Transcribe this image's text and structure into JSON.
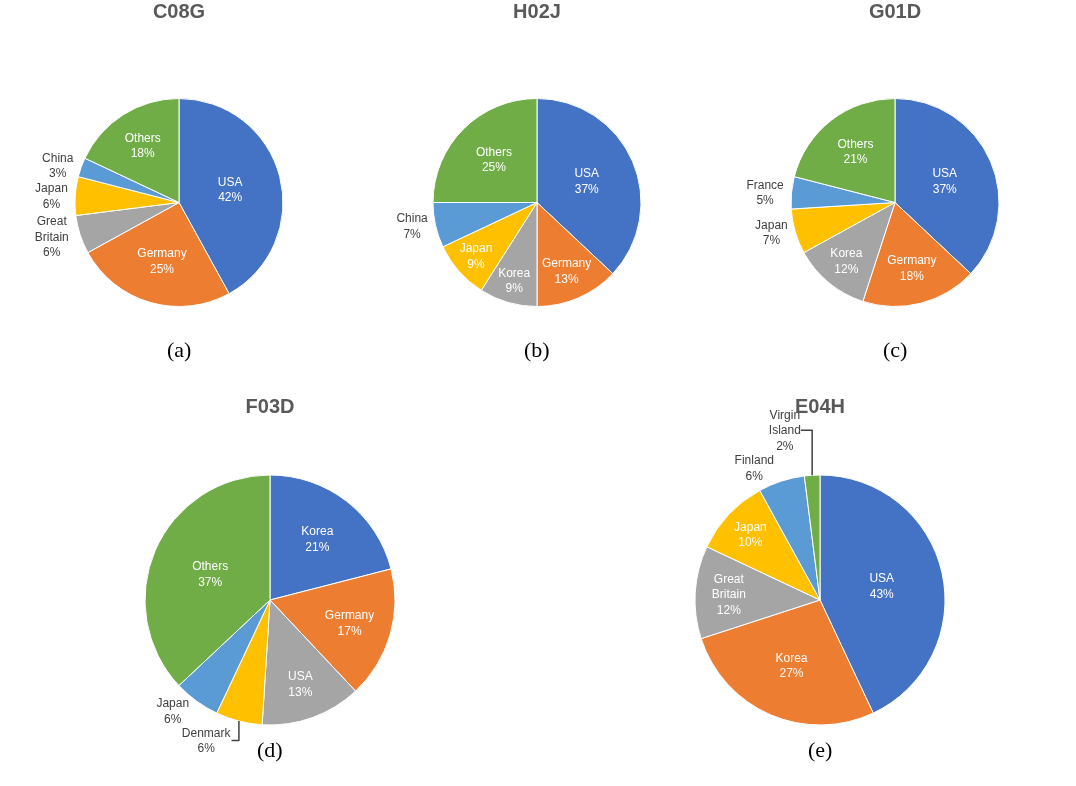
{
  "chart_data": [
    {
      "type": "pie",
      "title": "C08G",
      "categories": [
        "USA",
        "Germany",
        "Great Britain",
        "Japan",
        "China",
        "Others"
      ],
      "values": [
        42,
        25,
        6,
        6,
        3,
        18
      ],
      "value_labels": [
        "42%",
        "25%",
        "6%",
        "6%",
        "3%",
        "18%"
      ],
      "colors": [
        "#4472c4",
        "#ed7d31",
        "#a5a5a5",
        "#ffc000",
        "#5b9bd5",
        "#70ad47"
      ],
      "legend": false,
      "annotations": [
        "(a)"
      ]
    },
    {
      "type": "pie",
      "title": "H02J",
      "categories": [
        "USA",
        "Germany",
        "Korea",
        "Japan",
        "China",
        "Others"
      ],
      "values": [
        37,
        13,
        9,
        9,
        7,
        25
      ],
      "value_labels": [
        "37%",
        "13%",
        "9%",
        "9%",
        "7%",
        "25%"
      ],
      "colors": [
        "#4472c4",
        "#ed7d31",
        "#a5a5a5",
        "#ffc000",
        "#5b9bd5",
        "#70ad47"
      ],
      "legend": false,
      "annotations": [
        "(b)"
      ]
    },
    {
      "type": "pie",
      "title": "G01D",
      "categories": [
        "USA",
        "Germany",
        "Korea",
        "Japan",
        "France",
        "Others"
      ],
      "values": [
        37,
        18,
        12,
        7,
        5,
        21
      ],
      "value_labels": [
        "37%",
        "18%",
        "12%",
        "7%",
        "5%",
        "21%"
      ],
      "colors": [
        "#4472c4",
        "#ed7d31",
        "#a5a5a5",
        "#ffc000",
        "#5b9bd5",
        "#70ad47"
      ],
      "legend": false,
      "annotations": [
        "(c)"
      ]
    },
    {
      "type": "pie",
      "title": "F03D",
      "categories": [
        "Korea",
        "Germany",
        "USA",
        "Denmark",
        "Japan",
        "Others"
      ],
      "values": [
        21,
        17,
        13,
        6,
        6,
        37
      ],
      "value_labels": [
        "21%",
        "17%",
        "13%",
        "6%",
        "6%",
        "37%"
      ],
      "colors": [
        "#4472c4",
        "#ed7d31",
        "#a5a5a5",
        "#ffc000",
        "#5b9bd5",
        "#70ad47"
      ],
      "legend": false,
      "annotations": [
        "(d)"
      ]
    },
    {
      "type": "pie",
      "title": "E04H",
      "categories": [
        "USA",
        "Korea",
        "Great Britain",
        "Japan",
        "Finland",
        "Virgin Island"
      ],
      "values": [
        43,
        27,
        12,
        10,
        6,
        2
      ],
      "value_labels": [
        "43%",
        "27%",
        "12%",
        "10%",
        "6%",
        "2%"
      ],
      "colors": [
        "#4472c4",
        "#ed7d31",
        "#a5a5a5",
        "#ffc000",
        "#5b9bd5",
        "#70ad47"
      ],
      "legend": false,
      "annotations": [
        "(e)"
      ]
    }
  ]
}
